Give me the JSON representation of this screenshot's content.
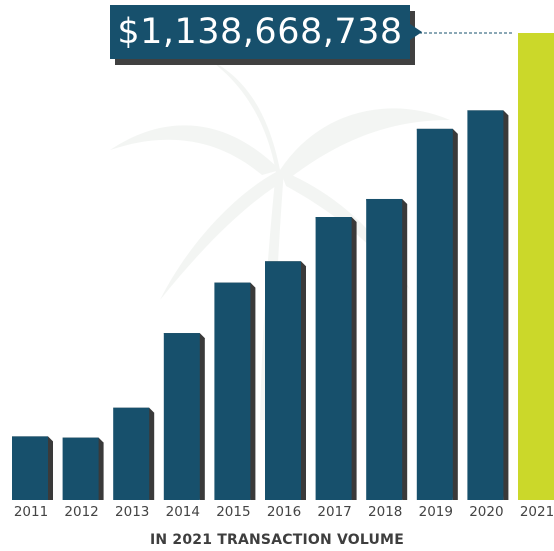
{
  "callout": {
    "text": "$1,138,668,738"
  },
  "caption": "IN 2021 TRANSACTION VOLUME",
  "colors": {
    "bar": "#17506c",
    "highlight": "#cbd82a",
    "shadow": "#3a3a3a",
    "axis_text": "#444444",
    "caption_text": "#3e3e3e"
  },
  "chart_data": {
    "type": "bar",
    "title": "",
    "xlabel": "",
    "ylabel": "",
    "categories": [
      "2011",
      "2012",
      "2013",
      "2014",
      "2015",
      "2016",
      "2017",
      "2018",
      "2019",
      "2020",
      "2021"
    ],
    "values": [
      155,
      152,
      225,
      407,
      530,
      582,
      690,
      734,
      905,
      950,
      1138.67
    ],
    "highlight_category": "2021",
    "annotation": "$1,138,668,738",
    "ylim": [
      0,
      1138.67
    ],
    "grid": false,
    "legend": "none"
  }
}
